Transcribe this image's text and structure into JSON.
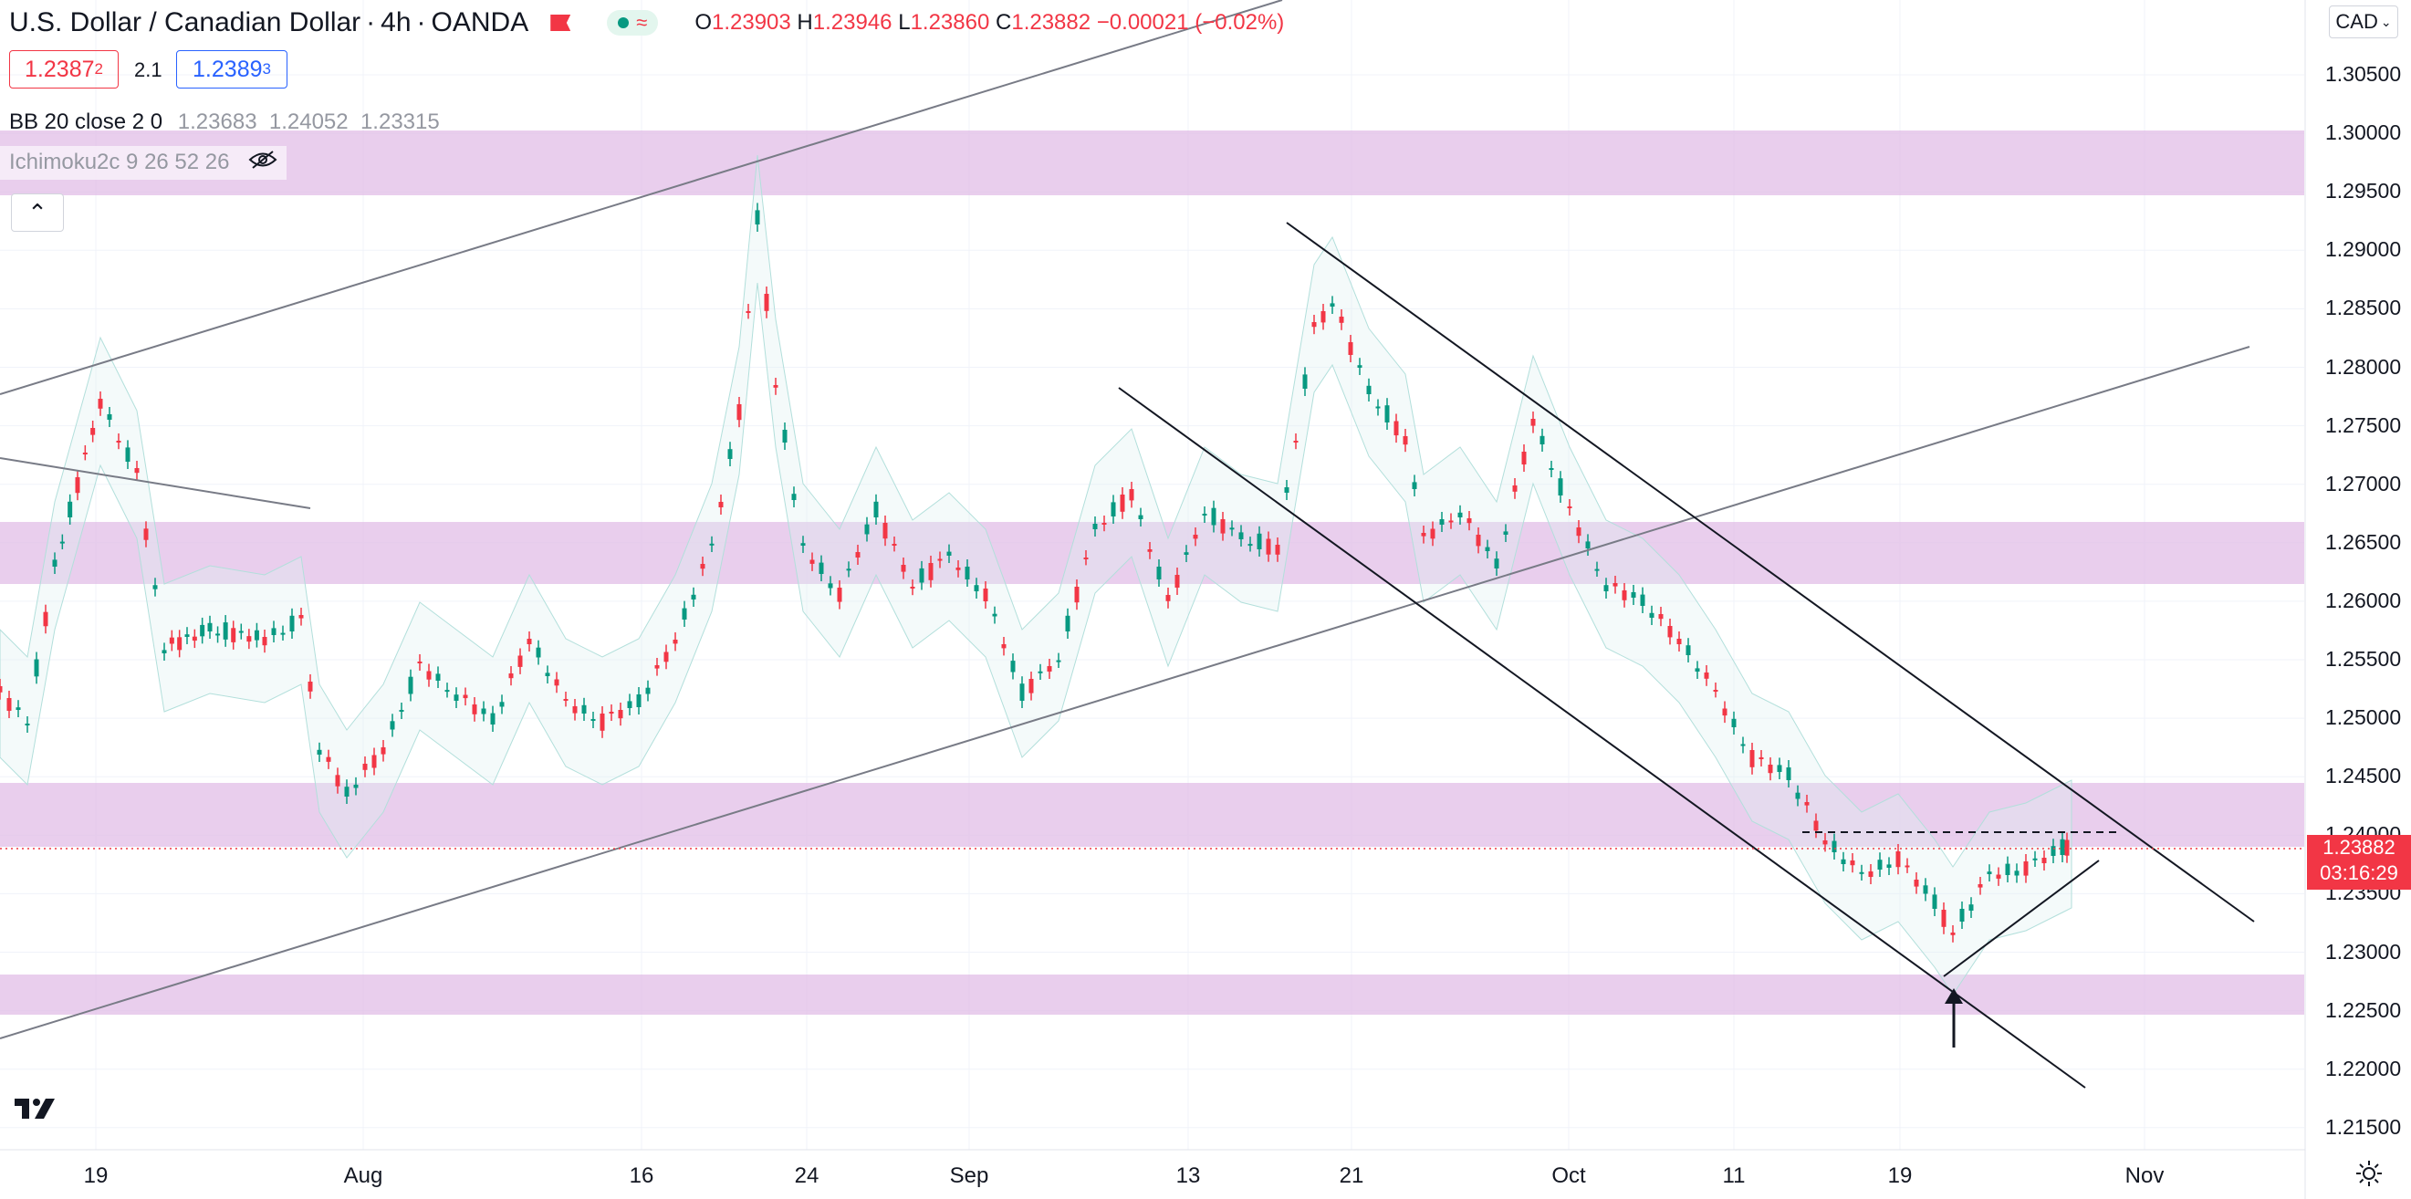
{
  "header": {
    "symbol_title": "U.S. Dollar / Canadian Dollar",
    "timeframe": "4h",
    "broker": "OANDA",
    "ohlc": {
      "o_label": "O",
      "o_value": "1.23903",
      "h_label": "H",
      "h_value": "1.23946",
      "l_label": "L",
      "l_value": "1.23860",
      "c_label": "C",
      "c_value": "1.23882",
      "change": "−0.00021 (−0.02%)"
    }
  },
  "trade": {
    "sell_main": "1.2387",
    "sell_sup": "2",
    "spread": "2.1",
    "buy_main": "1.2389",
    "buy_sup": "3"
  },
  "indicators": {
    "bb_name": "BB 20 close 2 0",
    "bb_values": "1.23683  1.24052  1.23315",
    "ichimoku_name": "Ichimoku2c 9 26 52 26"
  },
  "price_axis": {
    "currency": "CAD",
    "labels": [
      "1.30500",
      "1.30000",
      "1.29500",
      "1.29000",
      "1.28500",
      "1.28000",
      "1.27500",
      "1.27000",
      "1.26500",
      "1.26000",
      "1.25500",
      "1.25000",
      "1.24500",
      "1.24000",
      "1.23500",
      "1.23000",
      "1.22500",
      "1.22000",
      "1.21500"
    ],
    "current_price": "1.23882",
    "countdown": "03:16:29"
  },
  "time_axis": {
    "labels": [
      "19",
      "Aug",
      "16",
      "24",
      "Sep",
      "13",
      "21",
      "Oct",
      "11",
      "19",
      "Nov"
    ]
  },
  "colors": {
    "zone": "#e1bee7",
    "up": "#089981",
    "down": "#f23645",
    "accent_blue": "#2962ff",
    "line": "#787b86"
  },
  "icons": [
    "flag-icon",
    "indicator-status-icon",
    "hide-eye-icon",
    "chevron-up-icon",
    "tradingview-logo-icon",
    "settings-gear-icon",
    "chevron-down-icon"
  ]
}
